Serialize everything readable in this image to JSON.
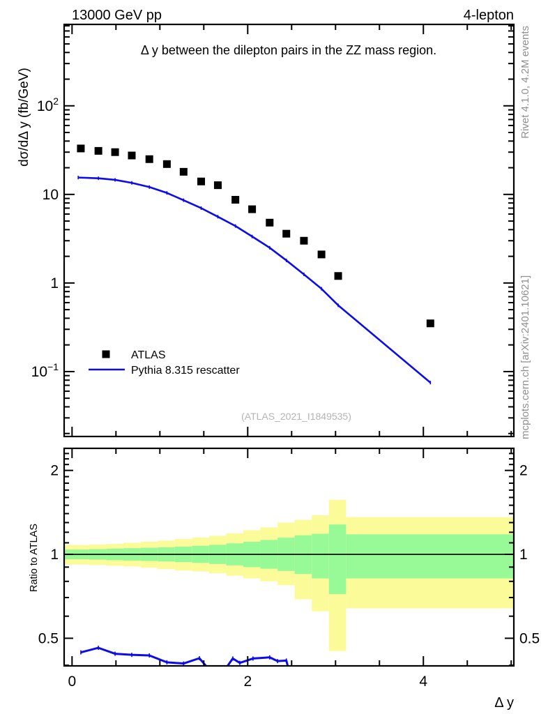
{
  "figure": {
    "header_left": "13000 GeV pp",
    "header_right": "4-lepton",
    "plot_title": "Δ y between the dilepton pairs in the ZZ mass region.",
    "watermark": "(ATLAS_2021_I1849535)",
    "note_top_right": "Rivet 4.1.0,  4.2M events",
    "note_bottom_right": "mcplots.cern.ch [arXiv:2401.10621]",
    "xaxis_label": "Δ y",
    "main_yaxis_label": "dσ/dΔ y (fb/GeV)",
    "ratio_yaxis_label": "Ratio to ATLAS"
  },
  "legend": {
    "entries": [
      {
        "label": "ATLAS",
        "marker": "filled-square",
        "color": "#000000"
      },
      {
        "label": "Pythia 8.315 rescatter",
        "marker": "line",
        "color": "#0b0bee"
      }
    ]
  },
  "colors": {
    "mc_line": "#0b0bee",
    "data_marker": "#000000",
    "band_outer_yellow": "#fbfb9a",
    "band_inner_green": "#97fa97",
    "frame": "#000000",
    "side_note_gray": "#8f8f8f",
    "watermark_gray": "#b4b4b4"
  },
  "chart_data": [
    {
      "type": "scatter",
      "panel": "main",
      "title": "Δ y between the dilepton pairs in the ZZ mass region.",
      "xlabel": "Δ y",
      "ylabel": "dσ/dΔ y (fb/GeV)",
      "yscale": "log",
      "xlim": [
        -0.09,
        5.03
      ],
      "ylim": [
        0.0185,
        830
      ],
      "xticks_major": [
        0,
        2,
        4
      ],
      "xtick_minor_step": 0.5,
      "ytick_labels": [
        {
          "v": 100,
          "base": "10",
          "exp": "2"
        },
        {
          "v": 10,
          "base": "10",
          "exp": null
        },
        {
          "v": 1,
          "base": "1",
          "exp": null
        },
        {
          "v": 0.1,
          "base": "10",
          "exp": "−1"
        }
      ],
      "series": [
        {
          "name": "ATLAS",
          "type": "points",
          "x": [
            0.1,
            0.3,
            0.49,
            0.68,
            0.88,
            1.08,
            1.27,
            1.47,
            1.66,
            1.86,
            2.05,
            2.25,
            2.44,
            2.64,
            2.84,
            3.03,
            4.08
          ],
          "y": [
            33,
            31,
            30,
            27.5,
            25,
            22,
            18,
            14,
            12.7,
            8.7,
            6.8,
            4.8,
            3.6,
            3.0,
            2.1,
            1.2,
            0.35
          ]
        },
        {
          "name": "Pythia 8.315 rescatter",
          "type": "line",
          "x": [
            0.07,
            0.3,
            0.49,
            0.68,
            0.88,
            1.08,
            1.27,
            1.47,
            1.66,
            1.86,
            2.05,
            2.25,
            2.44,
            2.64,
            2.84,
            3.03,
            4.08
          ],
          "y": [
            15.5,
            15.2,
            14.6,
            13.5,
            12.1,
            10.4,
            8.6,
            7.0,
            5.6,
            4.4,
            3.35,
            2.5,
            1.8,
            1.25,
            0.86,
            0.56,
            0.075
          ]
        }
      ]
    },
    {
      "type": "bands+line",
      "panel": "ratio",
      "ylabel": "Ratio to ATLAS",
      "xlabel": "Δ y",
      "yscale": "log",
      "xlim": [
        -0.09,
        5.03
      ],
      "ylim": [
        0.398,
        2.4
      ],
      "xticks_major": [
        0,
        2,
        4
      ],
      "xtick_minor_step": 0.5,
      "yticks": [
        {
          "v": 0.5,
          "label": "0.5"
        },
        {
          "v": 1,
          "label": "1"
        },
        {
          "v": 2,
          "label": "2"
        }
      ],
      "reference_line": 1,
      "bin_edges": [
        -0.09,
        0.195,
        0.39,
        0.585,
        0.78,
        0.975,
        1.17,
        1.365,
        1.56,
        1.755,
        1.95,
        2.145,
        2.34,
        2.535,
        2.73,
        2.925,
        3.12,
        5.03
      ],
      "band_yellow": [
        [
          0.92,
          1.08
        ],
        [
          0.915,
          1.085
        ],
        [
          0.91,
          1.09
        ],
        [
          0.905,
          1.1
        ],
        [
          0.895,
          1.11
        ],
        [
          0.885,
          1.12
        ],
        [
          0.875,
          1.135
        ],
        [
          0.868,
          1.148
        ],
        [
          0.855,
          1.165
        ],
        [
          0.838,
          1.19
        ],
        [
          0.82,
          1.22
        ],
        [
          0.8,
          1.25
        ],
        [
          0.775,
          1.3
        ],
        [
          0.69,
          1.33
        ],
        [
          0.625,
          1.38
        ],
        [
          0.45,
          1.57
        ],
        [
          0.64,
          1.36
        ]
      ],
      "band_green": [
        [
          0.96,
          1.04
        ],
        [
          0.957,
          1.044
        ],
        [
          0.953,
          1.048
        ],
        [
          0.95,
          1.052
        ],
        [
          0.947,
          1.056
        ],
        [
          0.943,
          1.06
        ],
        [
          0.938,
          1.066
        ],
        [
          0.932,
          1.073
        ],
        [
          0.924,
          1.082
        ],
        [
          0.913,
          1.095
        ],
        [
          0.9,
          1.11
        ],
        [
          0.888,
          1.126
        ],
        [
          0.872,
          1.147
        ],
        [
          0.85,
          1.17
        ],
        [
          0.82,
          1.185
        ],
        [
          0.72,
          1.28
        ],
        [
          0.82,
          1.18
        ]
      ],
      "ratio_line": {
        "name": "Pythia 8.315 rescatter / ATLAS",
        "x": [
          0.1,
          0.3,
          0.49,
          0.68,
          0.88,
          1.08,
          1.27,
          1.45,
          1.66,
          1.83,
          1.91,
          2.06,
          2.25,
          2.34,
          2.44,
          2.52
        ],
        "y": [
          0.445,
          0.462,
          0.44,
          0.436,
          0.434,
          0.41,
          0.406,
          0.424,
          0.355,
          0.423,
          0.408,
          0.423,
          0.427,
          0.414,
          0.416,
          0.33
        ]
      }
    }
  ]
}
